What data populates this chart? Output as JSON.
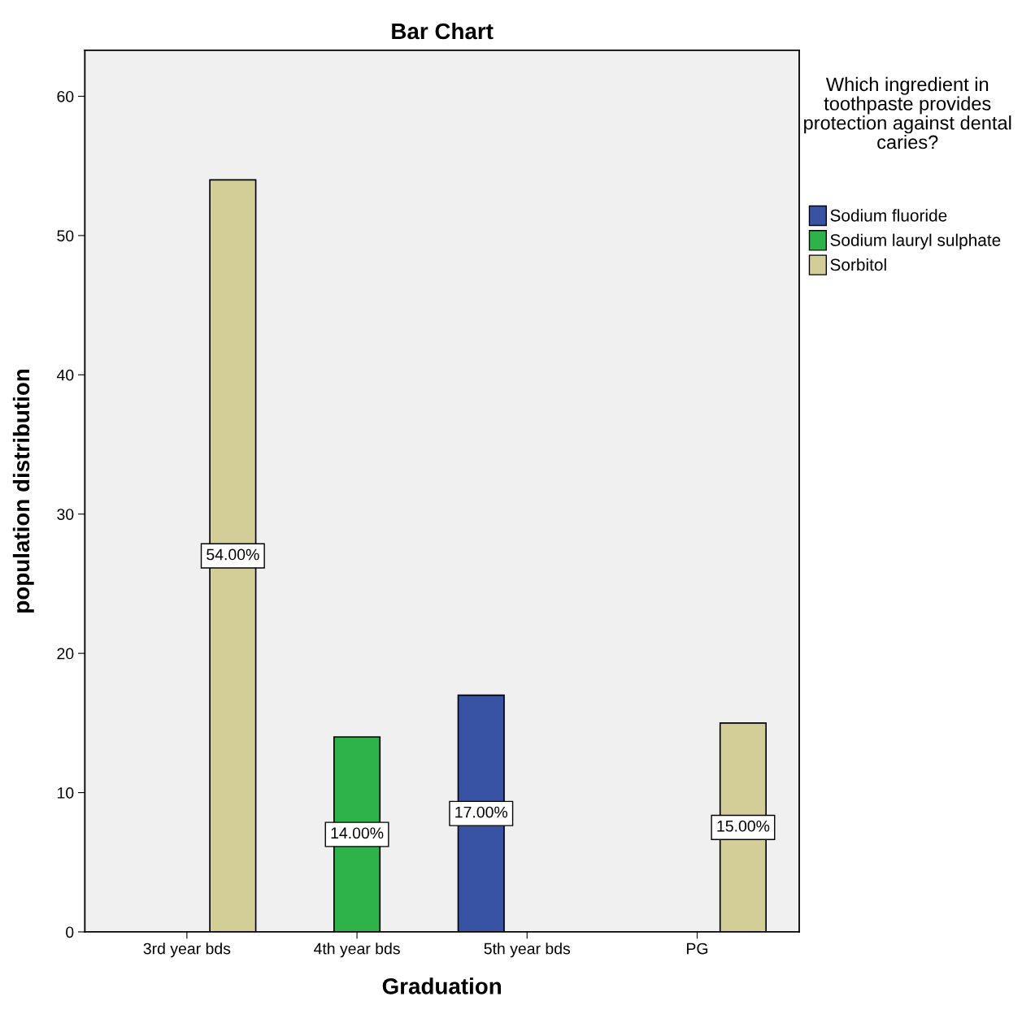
{
  "chart_data": {
    "type": "bar",
    "title": "Bar Chart",
    "xlabel": "Graduation",
    "ylabel": "population distribution",
    "legend_title": "Which ingredient in toothpaste provides protection against dental caries?",
    "categories": [
      "3rd year bds",
      "4th year bds",
      "5th year bds",
      "PG"
    ],
    "series": [
      {
        "name": "Sodium fluoride",
        "color": "#3953a4",
        "values": [
          null,
          null,
          17,
          null
        ],
        "value_labels": [
          null,
          null,
          "17.00%",
          null
        ]
      },
      {
        "name": "Sodium lauryl sulphate",
        "color": "#2db34a",
        "values": [
          null,
          14,
          null,
          null
        ],
        "value_labels": [
          null,
          "14.00%",
          null,
          null
        ]
      },
      {
        "name": "Sorbitol",
        "color": "#d3ce97",
        "values": [
          54,
          null,
          null,
          15
        ],
        "value_labels": [
          "54.00%",
          null,
          null,
          "15.00%"
        ]
      }
    ],
    "ylim": [
      0,
      63.3
    ],
    "yticks": [
      0,
      10,
      20,
      30,
      40,
      50,
      60
    ],
    "grid": false,
    "legend": "right"
  }
}
